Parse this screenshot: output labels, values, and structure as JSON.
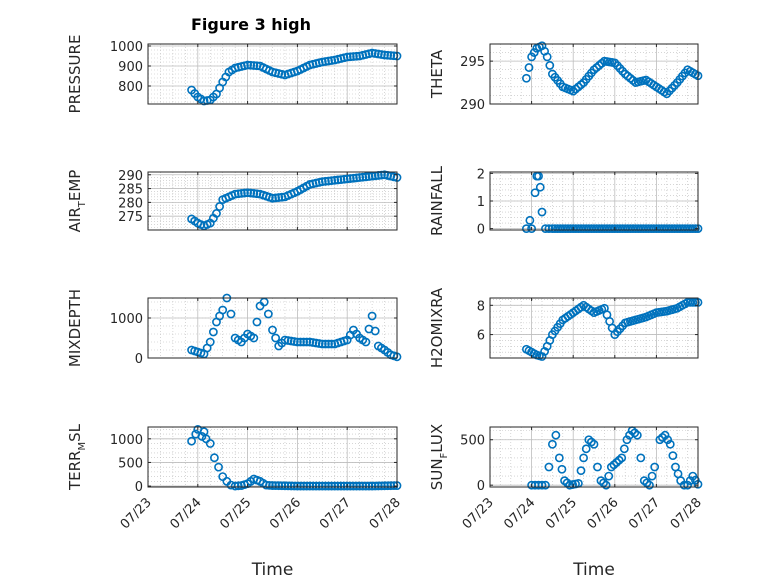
{
  "figure_title": "Figure 3 high",
  "colors": {
    "marker": "#0072bd",
    "axis": "#262626",
    "grid": "#bdbdbd"
  },
  "x_tick_labels": [
    "07/23",
    "07/24",
    "07/25",
    "07/26",
    "07/27",
    "07/28"
  ],
  "x_axis_label": "Time",
  "chart_data": [
    {
      "type": "scatter",
      "ylabel": "PRESSURE",
      "yticks": [
        800,
        900,
        1000
      ],
      "ylim": [
        710,
        1010
      ],
      "grid": true,
      "x": [
        "07/23 21:00",
        "07/24 00:00",
        "07/24 03:00",
        "07/24 06:00",
        "07/24 09:00",
        "07/24 12:00",
        "07/24 15:00",
        "07/24 18:00",
        "07/25 00:00",
        "07/25 06:00",
        "07/25 12:00",
        "07/25 18:00",
        "07/26 00:00",
        "07/26 06:00",
        "07/26 12:00",
        "07/26 18:00",
        "07/27 00:00",
        "07/27 06:00",
        "07/27 12:00",
        "07/27 18:00",
        "07/28 00:00"
      ],
      "y": [
        780,
        745,
        725,
        730,
        760,
        820,
        870,
        890,
        905,
        900,
        870,
        855,
        875,
        905,
        920,
        930,
        945,
        950,
        965,
        955,
        950
      ]
    },
    {
      "type": "scatter",
      "ylabel": "THETA",
      "yticks": [
        290,
        295
      ],
      "ylim": [
        290,
        297
      ],
      "grid": true,
      "x": [
        "07/23 21:00",
        "07/24 00:00",
        "07/24 03:00",
        "07/24 06:00",
        "07/24 09:00",
        "07/24 12:00",
        "07/24 18:00",
        "07/25 00:00",
        "07/25 06:00",
        "07/25 12:00",
        "07/25 18:00",
        "07/26 00:00",
        "07/26 06:00",
        "07/26 12:00",
        "07/26 18:00",
        "07/27 00:00",
        "07/27 06:00",
        "07/27 12:00",
        "07/27 18:00",
        "07/28 00:00"
      ],
      "y": [
        293,
        295.5,
        296.5,
        296.8,
        295.5,
        293.5,
        292,
        291.5,
        292.5,
        294,
        295,
        294.8,
        293.5,
        292.5,
        292.8,
        292,
        291.2,
        292.5,
        294,
        293.3
      ]
    },
    {
      "type": "scatter",
      "ylabel": "AIR_TEMP",
      "yticks": [
        275,
        280,
        285,
        290
      ],
      "ylim": [
        270,
        291
      ],
      "grid": true,
      "x": [
        "07/23 21:00",
        "07/24 00:00",
        "07/24 03:00",
        "07/24 06:00",
        "07/24 09:00",
        "07/24 12:00",
        "07/24 18:00",
        "07/25 00:00",
        "07/25 06:00",
        "07/25 12:00",
        "07/25 18:00",
        "07/26 00:00",
        "07/26 06:00",
        "07/26 12:00",
        "07/26 18:00",
        "07/27 00:00",
        "07/27 06:00",
        "07/27 12:00",
        "07/27 18:00",
        "07/28 00:00"
      ],
      "y": [
        274,
        272.5,
        271.5,
        272.5,
        276,
        281,
        283,
        283.5,
        283,
        281.5,
        282,
        284,
        286.5,
        287.5,
        288,
        288.5,
        289,
        289.5,
        290,
        289
      ]
    },
    {
      "type": "scatter",
      "ylabel": "RAINFALL",
      "yticks": [
        0,
        1,
        2
      ],
      "ylim": [
        -0.05,
        2.05
      ],
      "grid": true,
      "x": [
        "07/23 21:00",
        "07/23 23:00",
        "07/24 00:00",
        "07/24 02:00",
        "07/24 03:00",
        "07/24 04:00",
        "07/24 05:00",
        "07/24 06:00",
        "07/24 08:00",
        "07/24 12:00",
        "07/25 00:00",
        "07/25 12:00",
        "07/26 00:00",
        "07/26 12:00",
        "07/27 00:00",
        "07/27 12:00",
        "07/28 00:00"
      ],
      "y": [
        0,
        0.3,
        0,
        1.3,
        1.9,
        1.9,
        1.5,
        0.6,
        0,
        0,
        0,
        0,
        0,
        0,
        0,
        0,
        0
      ]
    },
    {
      "type": "scatter",
      "ylabel": "MIXDEPTH",
      "yticks": [
        0,
        1000
      ],
      "ylim": [
        0,
        1500
      ],
      "grid": true,
      "x": [
        "07/23 21:00",
        "07/24 00:00",
        "07/24 03:00",
        "07/24 06:00",
        "07/24 09:00",
        "07/24 12:00",
        "07/24 14:00",
        "07/24 16:00",
        "07/24 18:00",
        "07/24 21:00",
        "07/25 00:00",
        "07/25 03:00",
        "07/25 06:00",
        "07/25 08:00",
        "07/25 10:00",
        "07/25 12:00",
        "07/25 15:00",
        "07/25 18:00",
        "07/26 00:00",
        "07/26 06:00",
        "07/26 12:00",
        "07/26 18:00",
        "07/27 00:00",
        "07/27 03:00",
        "07/27 06:00",
        "07/27 09:00",
        "07/27 12:00",
        "07/27 15:00",
        "07/27 18:00",
        "07/27 21:00",
        "07/28 00:00"
      ],
      "y": [
        200,
        150,
        100,
        400,
        900,
        1200,
        1500,
        1100,
        500,
        400,
        600,
        500,
        1300,
        1400,
        1100,
        700,
        300,
        450,
        400,
        400,
        350,
        350,
        450,
        700,
        500,
        400,
        1050,
        300,
        200,
        80,
        30
      ]
    },
    {
      "type": "scatter",
      "ylabel": "H2OMIXRA",
      "yticks": [
        6,
        8
      ],
      "ylim": [
        4.4,
        8.5
      ],
      "grid": true,
      "x": [
        "07/23 21:00",
        "07/24 00:00",
        "07/24 03:00",
        "07/24 06:00",
        "07/24 09:00",
        "07/24 12:00",
        "07/24 18:00",
        "07/25 00:00",
        "07/25 06:00",
        "07/25 12:00",
        "07/25 18:00",
        "07/26 00:00",
        "07/26 06:00",
        "07/26 12:00",
        "07/26 18:00",
        "07/27 00:00",
        "07/27 06:00",
        "07/27 12:00",
        "07/27 18:00",
        "07/28 00:00"
      ],
      "y": [
        5,
        4.8,
        4.6,
        4.5,
        5.2,
        6,
        7,
        7.5,
        8,
        7.5,
        7.8,
        6,
        6.8,
        7,
        7.2,
        7.5,
        7.6,
        7.8,
        8.2,
        8.2
      ]
    },
    {
      "type": "scatter",
      "ylabel": "TERR_MSL",
      "yticks": [
        0,
        500,
        1000
      ],
      "ylim": [
        -20,
        1250
      ],
      "grid": true,
      "x": [
        "07/23 21:00",
        "07/23 23:00",
        "07/24 00:00",
        "07/24 02:00",
        "07/24 03:00",
        "07/24 04:00",
        "07/24 06:00",
        "07/24 08:00",
        "07/24 10:00",
        "07/24 12:00",
        "07/24 14:00",
        "07/24 16:00",
        "07/24 18:00",
        "07/24 21:00",
        "07/25 00:00",
        "07/25 03:00",
        "07/25 06:00",
        "07/25 09:00",
        "07/25 12:00",
        "07/26 00:00",
        "07/26 12:00",
        "07/27 00:00",
        "07/27 12:00",
        "07/28 00:00"
      ],
      "y": [
        950,
        1100,
        1200,
        1050,
        1150,
        1000,
        900,
        600,
        400,
        200,
        100,
        20,
        0,
        10,
        50,
        150,
        100,
        20,
        10,
        0,
        0,
        0,
        0,
        10
      ]
    },
    {
      "type": "scatter",
      "ylabel": "SUN_FLUX",
      "yticks": [
        0,
        500
      ],
      "ylim": [
        -20,
        640
      ],
      "grid": true,
      "x": [
        "07/24 00:00",
        "07/24 04:00",
        "07/24 08:00",
        "07/24 10:00",
        "07/24 12:00",
        "07/24 14:00",
        "07/24 16:00",
        "07/24 19:00",
        "07/24 22:00",
        "07/25 03:00",
        "07/25 06:00",
        "07/25 09:00",
        "07/25 12:00",
        "07/25 14:00",
        "07/25 16:00",
        "07/25 19:00",
        "07/25 22:00",
        "07/26 04:00",
        "07/26 07:00",
        "07/26 10:00",
        "07/26 13:00",
        "07/26 15:00",
        "07/26 17:00",
        "07/26 20:00",
        "07/26 23:00",
        "07/27 02:00",
        "07/27 05:00",
        "07/27 08:00",
        "07/27 11:00",
        "07/27 14:00",
        "07/27 16:00",
        "07/27 18:00",
        "07/27 21:00",
        "07/28 00:00"
      ],
      "y": [
        0,
        0,
        0,
        200,
        450,
        550,
        300,
        50,
        0,
        20,
        300,
        500,
        450,
        200,
        50,
        0,
        200,
        300,
        500,
        600,
        550,
        300,
        50,
        0,
        200,
        500,
        550,
        450,
        200,
        50,
        0,
        0,
        100,
        10
      ]
    }
  ]
}
